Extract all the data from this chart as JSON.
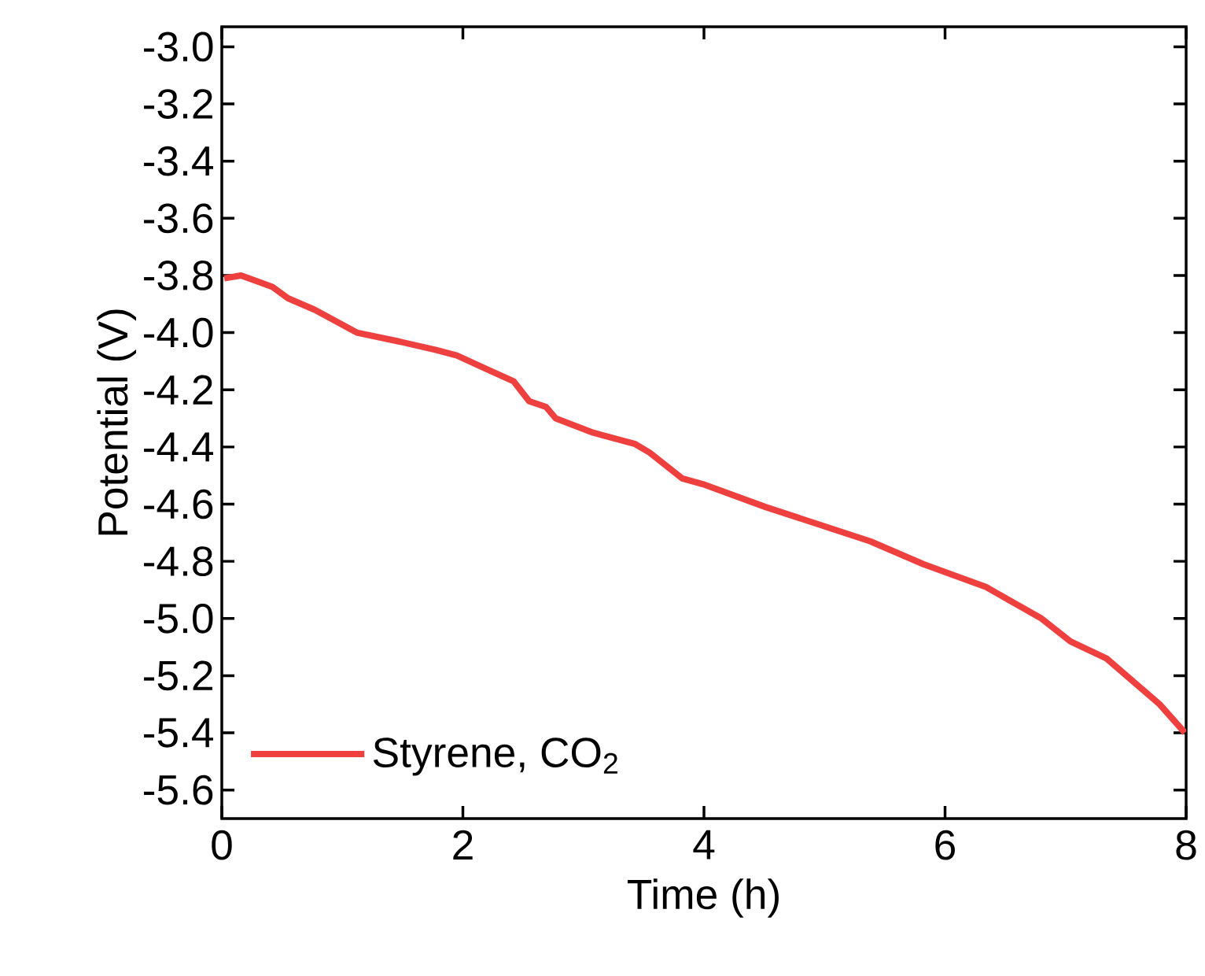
{
  "chart_data": {
    "type": "line",
    "xlabel": "Time (h)",
    "ylabel": "Potential (V)",
    "xlim": [
      0,
      8
    ],
    "xticks": [
      0,
      2,
      4,
      6,
      8
    ],
    "ylim": [
      -5.7,
      -2.93
    ],
    "yticks": [
      {
        "value": -3.0,
        "label": "-3.0"
      },
      {
        "value": -3.2,
        "label": "-3.2"
      },
      {
        "value": -3.4,
        "label": "-3.4"
      },
      {
        "value": -3.6,
        "label": "-3.6"
      },
      {
        "value": -3.8,
        "label": "-3.8"
      },
      {
        "value": -4.0,
        "label": "-4.0"
      },
      {
        "value": -4.2,
        "label": "-4.2"
      },
      {
        "value": -4.4,
        "label": "-4.4"
      },
      {
        "value": -4.6,
        "label": "-4.6"
      },
      {
        "value": -4.8,
        "label": "-4.8"
      },
      {
        "value": -5.0,
        "label": "-5.0"
      },
      {
        "value": -5.2,
        "label": "-5.2"
      },
      {
        "value": -5.4,
        "label": "-5.4"
      },
      {
        "value": -5.6,
        "label": "-5.6"
      }
    ],
    "grid": false,
    "legend": "bottom left",
    "marker": "none",
    "line_style": "solid",
    "series": [
      {
        "name": "Styrene, CO$_{2}$",
        "color": "#ef4040",
        "x": [
          0.02,
          0.16,
          0.42,
          0.55,
          0.77,
          1.12,
          1.46,
          1.77,
          1.95,
          2.21,
          2.42,
          2.55,
          2.69,
          2.77,
          3.08,
          3.43,
          3.55,
          3.82,
          3.99,
          4.51,
          5.38,
          5.82,
          6.34,
          6.8,
          7.04,
          7.34,
          7.78,
          7.99
        ],
        "values": [
          -3.81,
          -3.8,
          -3.84,
          -3.88,
          -3.92,
          -4.0,
          -4.03,
          -4.06,
          -4.08,
          -4.13,
          -4.17,
          -4.24,
          -4.26,
          -4.3,
          -4.35,
          -4.39,
          -4.42,
          -4.51,
          -4.53,
          -4.61,
          -4.73,
          -4.81,
          -4.89,
          -5.0,
          -5.08,
          -5.14,
          -5.3,
          -5.4
        ]
      }
    ]
  }
}
